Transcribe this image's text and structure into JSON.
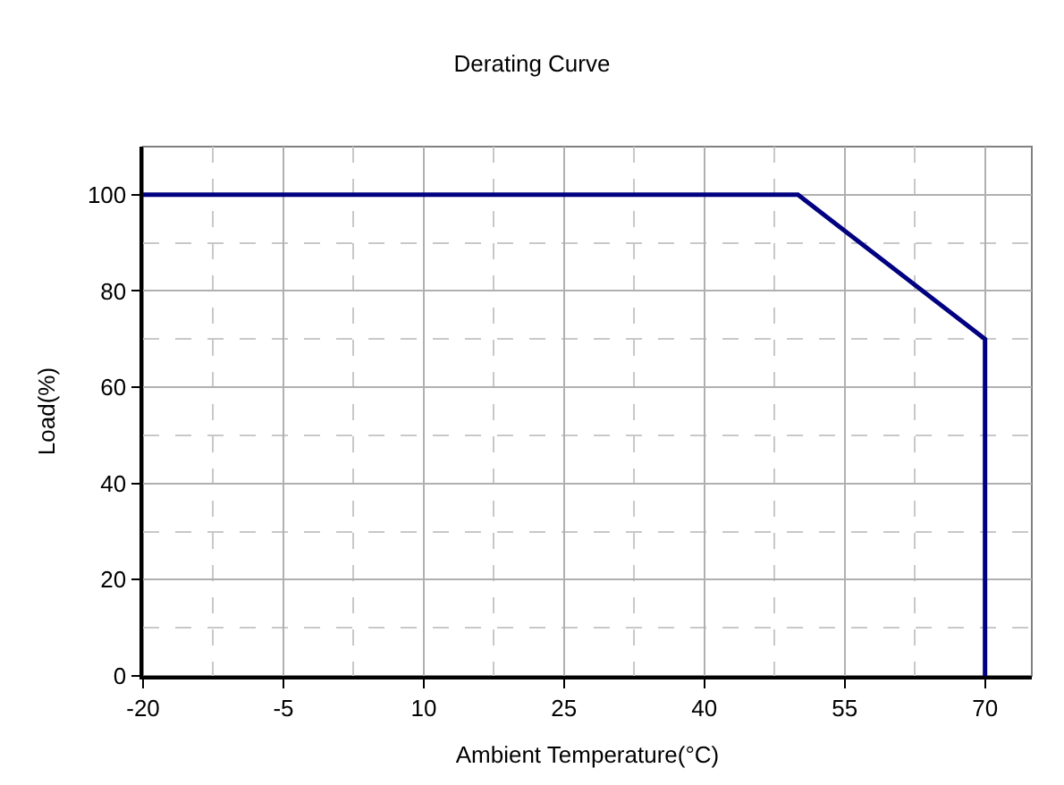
{
  "chart_data": {
    "type": "line",
    "title": "Derating Curve",
    "xlabel": "Ambient Temperature(°C)",
    "ylabel": "Load(%)",
    "x": [
      -20,
      50,
      70,
      70
    ],
    "series": [
      {
        "color": "#000080",
        "values": [
          100,
          100,
          70,
          0
        ]
      }
    ],
    "xlim": [
      -20,
      75
    ],
    "xticks": [
      -20,
      -5,
      10,
      25,
      40,
      55,
      70
    ],
    "ylim": [
      0,
      110
    ],
    "yticks": [
      0,
      20,
      40,
      60,
      80,
      100
    ],
    "grid": true,
    "legend": false,
    "marker": "none",
    "line_style": "solid"
  }
}
